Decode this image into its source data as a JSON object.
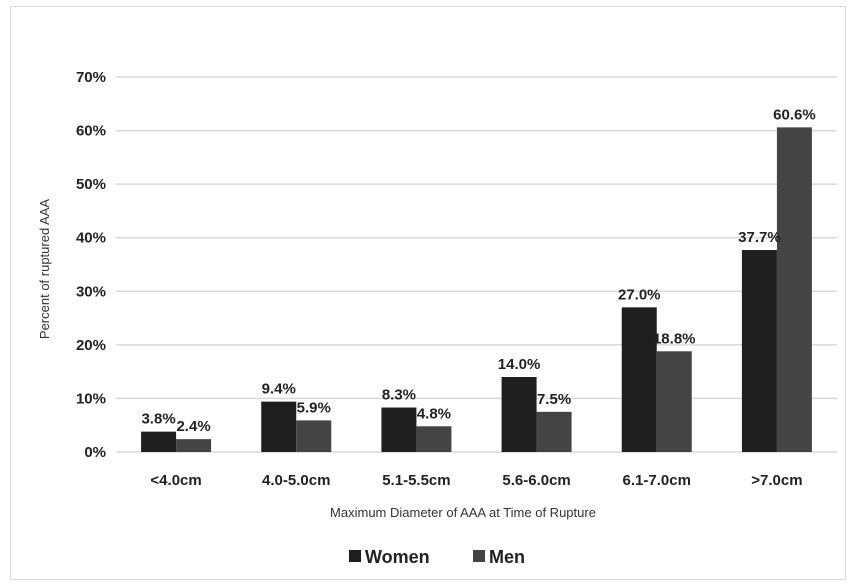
{
  "chart_data": {
    "type": "bar",
    "categories": [
      "<4.0cm",
      "4.0-5.0cm",
      "5.1-5.5cm",
      "5.6-6.0cm",
      "6.1-7.0cm",
      ">7.0cm"
    ],
    "series": [
      {
        "name": "Women",
        "values": [
          3.8,
          9.4,
          8.3,
          14.0,
          27.0,
          37.7
        ],
        "labels": [
          "3.8%",
          "9.4%",
          "8.3%",
          "14.0%",
          "27.0%",
          "37.7%"
        ],
        "color": "#1e1e1e"
      },
      {
        "name": "Men",
        "values": [
          2.4,
          5.9,
          4.8,
          7.5,
          18.8,
          60.6
        ],
        "labels": [
          "2.4%",
          "5.9%",
          "4.8%",
          "7.5%",
          "18.8%",
          "60.6%"
        ],
        "color": "#444444"
      }
    ],
    "xlabel": "Maximum Diameter of AAA at Time of Rupture",
    "ylabel": "Percent of ruptured AAA",
    "ylim": [
      0,
      70
    ],
    "yticks": [
      "0%",
      "10%",
      "20%",
      "30%",
      "40%",
      "50%",
      "60%",
      "70%"
    ],
    "grid": true,
    "legend": "bottom",
    "gridline_color": "#d9d9d9"
  }
}
